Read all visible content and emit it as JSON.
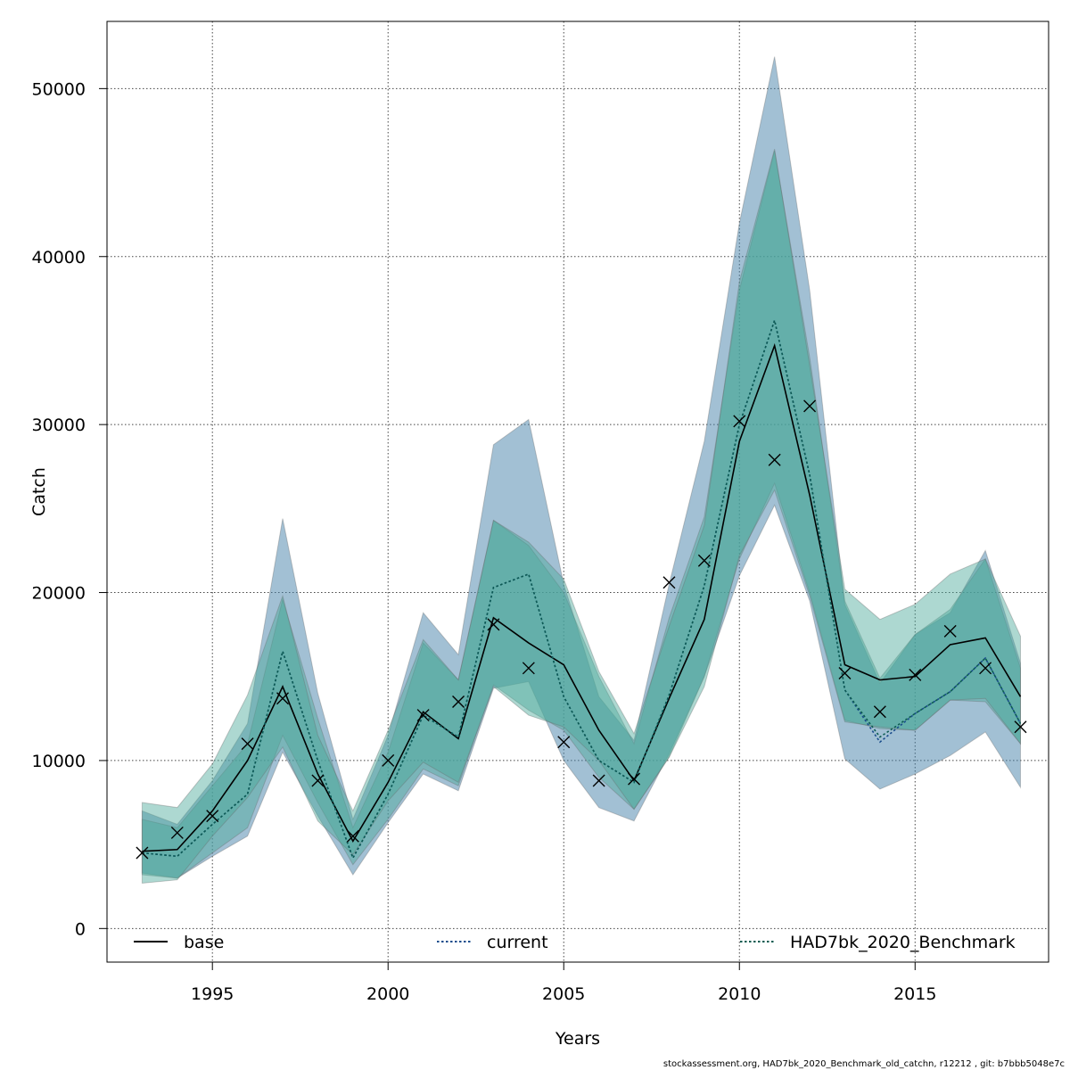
{
  "chart_data": {
    "type": "line",
    "title": "",
    "xlabel": "Years",
    "ylabel": "Catch",
    "xlim": [
      1992,
      2018.8
    ],
    "ylim": [
      -2000,
      54000
    ],
    "x_ticks": [
      1995,
      2000,
      2005,
      2010,
      2015
    ],
    "y_ticks": [
      0,
      10000,
      20000,
      30000,
      40000,
      50000
    ],
    "x_tick_labels": [
      "1995",
      "2000",
      "2005",
      "2010",
      "2015"
    ],
    "y_tick_labels": [
      "0",
      "10000",
      "20000",
      "30000",
      "40000",
      "50000"
    ],
    "grid": true,
    "legend_position": "bottom",
    "x": [
      1993,
      1994,
      1995,
      1996,
      1997,
      1998,
      1999,
      2000,
      2001,
      2002,
      2003,
      2004,
      2005,
      2006,
      2007,
      2008,
      2009,
      2010,
      2011,
      2012,
      2013,
      2014,
      2015,
      2016,
      2017,
      2018
    ],
    "observed": {
      "marker": "x",
      "values": [
        4500,
        5700,
        6700,
        11000,
        13700,
        8800,
        5500,
        10000,
        12700,
        13500,
        18100,
        15500,
        11100,
        8800,
        8900,
        20600,
        21900,
        30200,
        27900,
        31100,
        15200,
        12900,
        15100,
        17700,
        15500,
        12000
      ]
    },
    "series": [
      {
        "name": "base",
        "line_style": "solid",
        "color": "#000000",
        "band_color": "#4682a9",
        "values": [
          4600,
          4700,
          7000,
          10000,
          14400,
          9200,
          5200,
          8700,
          12900,
          11300,
          18500,
          17000,
          15700,
          11800,
          8800,
          13700,
          18400,
          29000,
          34700,
          25800,
          15700,
          14800,
          15000,
          16900,
          17300,
          13800
        ],
        "lower": [
          3300,
          3000,
          4300,
          5500,
          10500,
          6700,
          3200,
          6300,
          9200,
          8200,
          14300,
          14700,
          10000,
          7200,
          6400,
          10400,
          15000,
          21000,
          25200,
          19500,
          10100,
          8300,
          9200,
          10300,
          11700,
          8400
        ],
        "upper": [
          7000,
          6200,
          8800,
          12200,
          24400,
          14000,
          6500,
          11500,
          18800,
          16300,
          28800,
          30300,
          20500,
          13800,
          11200,
          20500,
          29000,
          42000,
          51900,
          38000,
          19300,
          14600,
          17500,
          18800,
          22500,
          15800
        ]
      },
      {
        "name": "current",
        "line_style": "dotted",
        "color": "#1a4d8c",
        "band_color": "#4aa898",
        "values": [
          4500,
          4300,
          6200,
          8000,
          16500,
          10000,
          4200,
          8000,
          12700,
          11400,
          20300,
          21100,
          13800,
          10000,
          8700,
          13900,
          20400,
          30000,
          36200,
          27000,
          14200,
          11100,
          12800,
          14100,
          16100,
          12200
        ],
        "lower": [
          3200,
          3000,
          4500,
          6000,
          11500,
          7500,
          3800,
          6500,
          9500,
          8500,
          14500,
          13000,
          11800,
          9000,
          7100,
          10200,
          15000,
          22000,
          26500,
          20000,
          12400,
          11900,
          11800,
          13600,
          13500,
          11000
        ],
        "upper": [
          6500,
          6000,
          8500,
          11000,
          19600,
          12500,
          6000,
          10500,
          17000,
          14800,
          24300,
          22800,
          20000,
          15000,
          11000,
          18500,
          24500,
          38000,
          46300,
          34000,
          19500,
          14900,
          17500,
          19000,
          22000,
          15500
        ]
      },
      {
        "name": "HAD7bk_2020_Benchmark",
        "line_style": "dotted",
        "color": "#0d5c52",
        "band_color": "#4aa898",
        "values": [
          4500,
          4300,
          6200,
          8000,
          16500,
          10000,
          4200,
          8000,
          12700,
          11400,
          20300,
          21100,
          13800,
          10000,
          8700,
          13900,
          20400,
          30000,
          36200,
          27000,
          14200,
          11400,
          12800,
          14100,
          16100,
          12200
        ],
        "lower": [
          2700,
          2900,
          5500,
          7800,
          10800,
          6400,
          4400,
          7600,
          9900,
          8700,
          14400,
          12700,
          12000,
          10000,
          7100,
          10200,
          14400,
          22200,
          26100,
          19800,
          12300,
          12000,
          11800,
          13600,
          13700,
          11000
        ],
        "upper": [
          7500,
          7200,
          9800,
          13900,
          19800,
          11500,
          7000,
          11800,
          17200,
          14800,
          24300,
          23000,
          20800,
          15300,
          11600,
          18000,
          24000,
          38500,
          46400,
          33500,
          20200,
          18400,
          19300,
          21100,
          22000,
          17400
        ]
      }
    ]
  },
  "footer_text": "stockassessment.org, HAD7bk_2020_Benchmark_old_catchn, r12212 , git: b7bbb5048e7c"
}
